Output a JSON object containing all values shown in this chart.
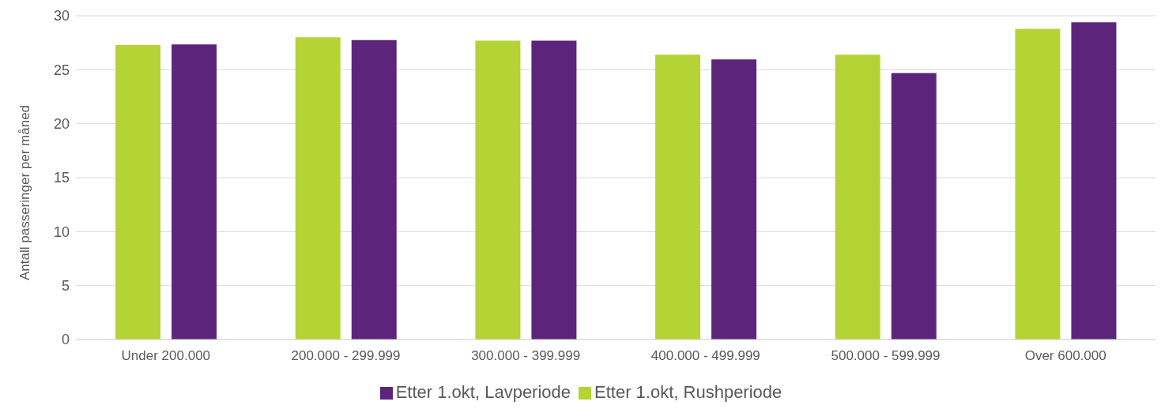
{
  "chart_data": {
    "type": "bar",
    "ylabel": "Antall passeringer per måned",
    "categories": [
      "Under 200.000",
      "200.000 - 299.999",
      "300.000 - 399.999",
      "400.000 - 499.999",
      "500.000 - 599.999",
      "Over 600.000"
    ],
    "series": [
      {
        "name": "Etter 1.okt, Rushperiode",
        "color": "#b5d334",
        "values": [
          27.3,
          28.0,
          27.7,
          26.4,
          26.4,
          28.8
        ]
      },
      {
        "name": "Etter 1.okt, Lavperiode",
        "color": "#5c257b",
        "values": [
          27.35,
          27.75,
          27.7,
          25.95,
          24.7,
          29.4
        ]
      }
    ],
    "ylim": [
      0,
      30
    ],
    "yticks": [
      0,
      5,
      10,
      15,
      20,
      25,
      30
    ],
    "grid": "y",
    "legend": "bottom"
  }
}
